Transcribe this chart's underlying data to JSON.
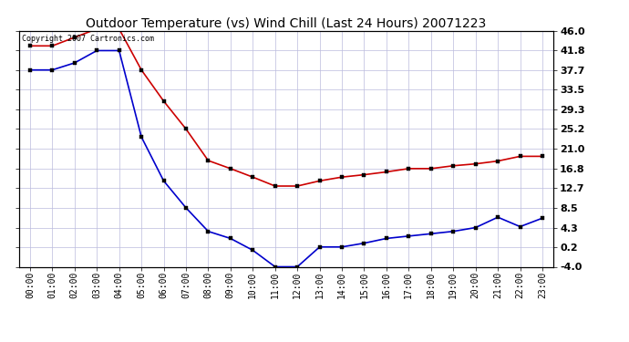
{
  "title": "Outdoor Temperature (vs) Wind Chill (Last 24 Hours) 20071223",
  "copyright_text": "Copyright 2007 Cartronics.com",
  "x_labels": [
    "00:00",
    "01:00",
    "02:00",
    "03:00",
    "04:00",
    "05:00",
    "06:00",
    "07:00",
    "08:00",
    "09:00",
    "10:00",
    "11:00",
    "12:00",
    "13:00",
    "14:00",
    "15:00",
    "16:00",
    "17:00",
    "18:00",
    "19:00",
    "20:00",
    "21:00",
    "22:00",
    "23:00"
  ],
  "temp_data": [
    42.8,
    42.8,
    44.6,
    46.4,
    46.4,
    37.7,
    31.1,
    25.2,
    18.5,
    16.8,
    15.0,
    13.1,
    13.1,
    14.2,
    15.0,
    15.5,
    16.1,
    16.8,
    16.8,
    17.4,
    17.8,
    18.4,
    19.4,
    19.4
  ],
  "windchill_data": [
    37.7,
    37.7,
    39.2,
    41.8,
    41.8,
    23.5,
    14.2,
    8.5,
    3.5,
    2.0,
    -0.5,
    -4.0,
    -4.0,
    0.2,
    0.2,
    1.0,
    2.0,
    2.5,
    3.0,
    3.5,
    4.3,
    6.5,
    4.5,
    6.3
  ],
  "temp_color": "#cc0000",
  "windchill_color": "#0000cc",
  "ylim": [
    -4.0,
    46.0
  ],
  "yticks": [
    46.0,
    41.8,
    37.7,
    33.5,
    29.3,
    25.2,
    21.0,
    16.8,
    12.7,
    8.5,
    4.3,
    0.2,
    -4.0
  ],
  "background_color": "#ffffff",
  "grid_color": "#bbbbdd",
  "title_fontsize": 10,
  "tick_fontsize": 7,
  "copyright_fontsize": 6,
  "marker_size": 3,
  "linewidth": 1.2
}
